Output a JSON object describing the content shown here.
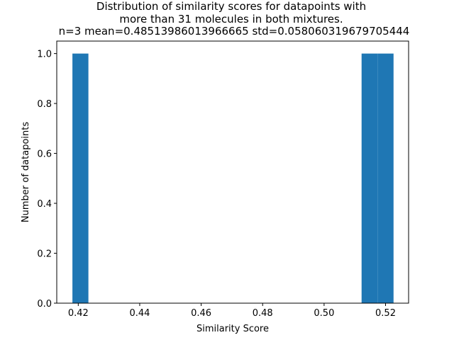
{
  "chart_data": {
    "type": "bar",
    "title_lines": [
      "Distribution of similarity scores for datapoints with",
      "more than 31 molecules in both mixtures.",
      "n=3 mean=0.48513986013966665 std=0.058060319679705444"
    ],
    "xlabel": "Similarity Score",
    "ylabel": "Number of datapoints",
    "xlim": [
      0.413,
      0.5275
    ],
    "ylim": [
      0,
      1.05
    ],
    "xticks": [
      0.42,
      0.44,
      0.46,
      0.48,
      0.5,
      0.52
    ],
    "xtick_labels": [
      "0.42",
      "0.44",
      "0.46",
      "0.48",
      "0.50",
      "0.52"
    ],
    "yticks": [
      0.0,
      0.2,
      0.4,
      0.6,
      0.8,
      1.0
    ],
    "ytick_labels": [
      "0.0",
      "0.2",
      "0.4",
      "0.6",
      "0.8",
      "1.0"
    ],
    "bins": [
      {
        "x0": 0.4181,
        "x1": 0.4233,
        "count": 1
      },
      {
        "x0": 0.5122,
        "x1": 0.5174,
        "count": 1
      },
      {
        "x0": 0.5174,
        "x1": 0.5226,
        "count": 1
      }
    ],
    "bar_color": "#1f77b4",
    "grid": false
  }
}
